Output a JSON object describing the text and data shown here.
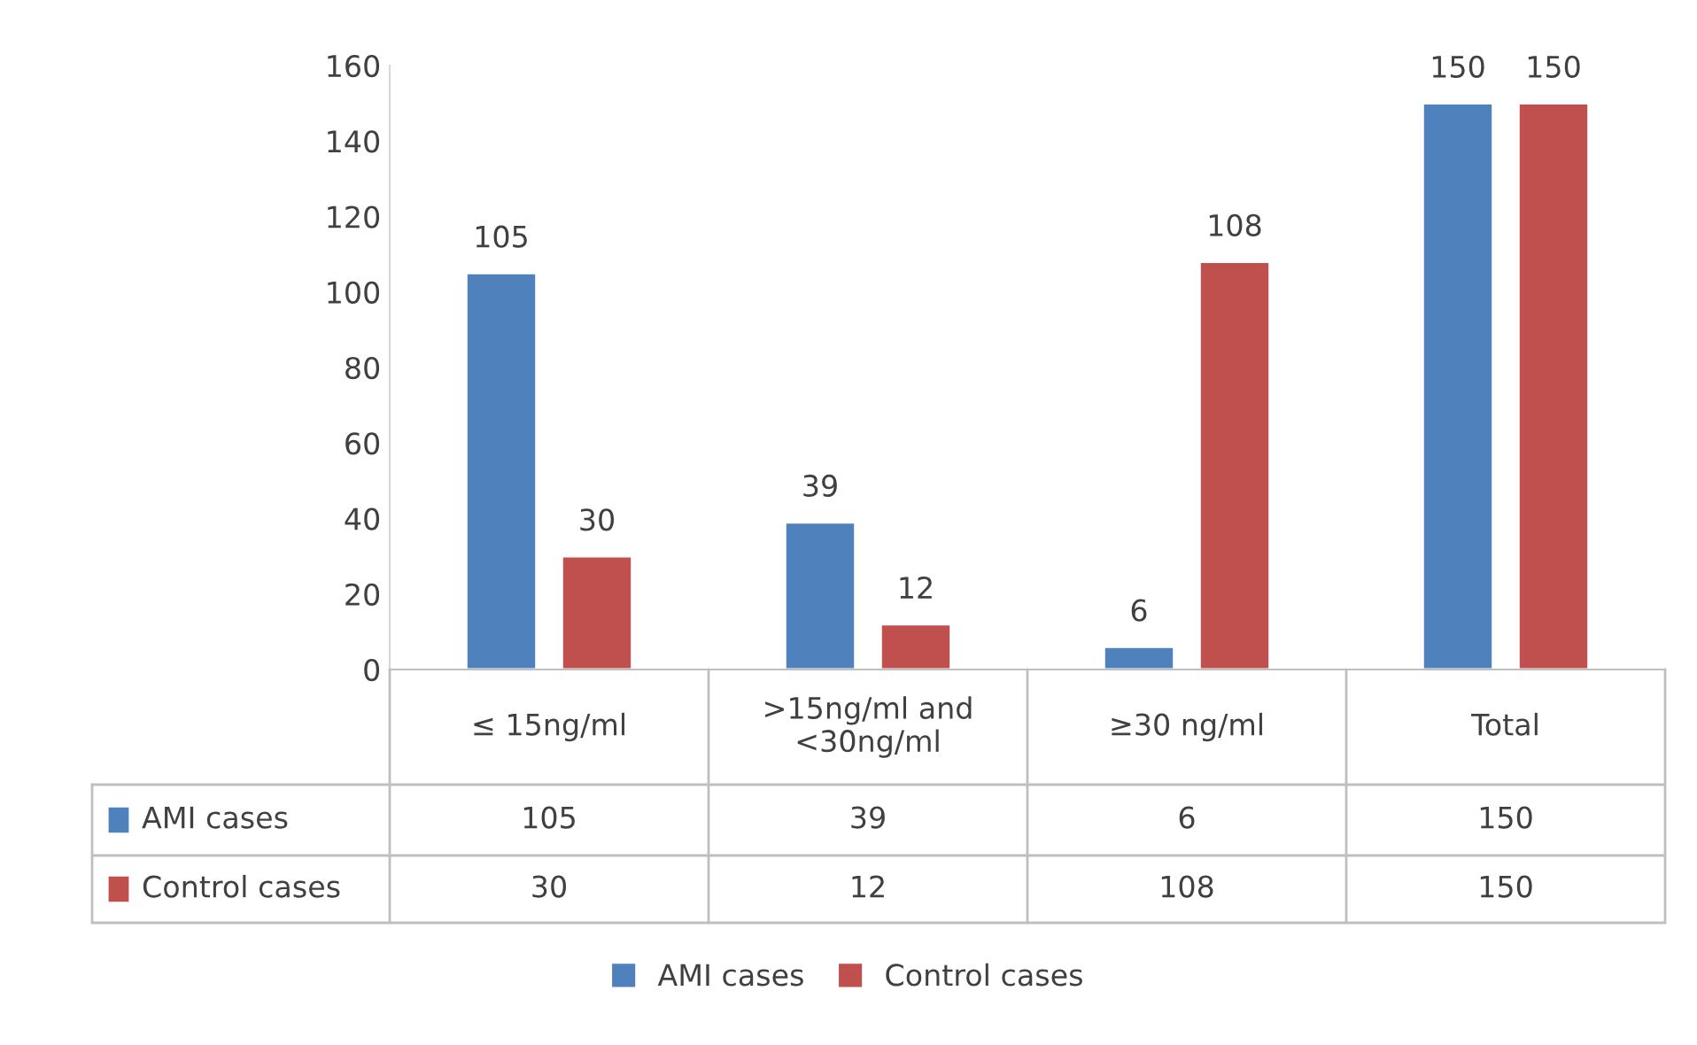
{
  "chart_data": {
    "type": "bar",
    "categories": [
      "≤ 15ng/ml",
      ">15ng/ml and\n<30ng/ml",
      "≥30 ng/ml",
      "Total"
    ],
    "series": [
      {
        "name": "AMI cases",
        "color": "#4f81bd",
        "values": [
          105,
          39,
          6,
          150
        ],
        "value_labels": [
          "105",
          "39",
          "6",
          "150"
        ]
      },
      {
        "name": "Control cases",
        "color": "#c0504d",
        "values": [
          30,
          12,
          108,
          150
        ],
        "value_labels": [
          "30",
          "12",
          "108",
          "150"
        ]
      }
    ],
    "ylim": [
      0,
      160
    ],
    "yticks": [
      0,
      20,
      40,
      60,
      80,
      100,
      120,
      140,
      160
    ],
    "annotations": [
      "105",
      "39",
      "6",
      "150",
      "30",
      "12",
      "108",
      "150"
    ],
    "grid": false,
    "legend": "bottom"
  }
}
